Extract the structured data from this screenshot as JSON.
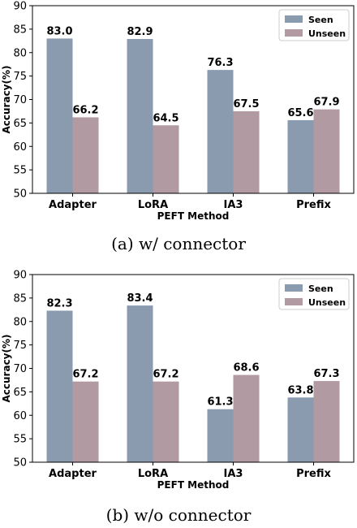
{
  "chart_data": [
    {
      "type": "bar",
      "caption": "(a) w/ connector",
      "xlabel": "PEFT Method",
      "ylabel": "Accuracy(%)",
      "ylim": [
        50,
        90
      ],
      "yticks": [
        "50",
        "55",
        "60",
        "65",
        "70",
        "75",
        "80",
        "85",
        "90"
      ],
      "categories": [
        "Adapter",
        "LoRA",
        "IA3",
        "Prefix"
      ],
      "legend_position": "top-right",
      "series": [
        {
          "name": "Seen",
          "color": "#8a9bb0",
          "values": [
            83.0,
            82.9,
            76.3,
            65.6
          ],
          "labels": [
            "83.0",
            "82.9",
            "76.3",
            "65.6"
          ]
        },
        {
          "name": "Unseen",
          "color": "#b29aa3",
          "values": [
            66.2,
            64.5,
            67.5,
            67.9
          ],
          "labels": [
            "66.2",
            "64.5",
            "67.5",
            "67.9"
          ]
        }
      ]
    },
    {
      "type": "bar",
      "caption": "(b) w/o connector",
      "xlabel": "PEFT Method",
      "ylabel": "Accuracy(%)",
      "ylim": [
        50,
        90
      ],
      "yticks": [
        "50",
        "55",
        "60",
        "65",
        "70",
        "75",
        "80",
        "85",
        "90"
      ],
      "categories": [
        "Adapter",
        "LoRA",
        "IA3",
        "Prefix"
      ],
      "legend_position": "top-right",
      "series": [
        {
          "name": "Seen",
          "color": "#8a9bb0",
          "values": [
            82.3,
            83.4,
            61.3,
            63.8
          ],
          "labels": [
            "82.3",
            "83.4",
            "61.3",
            "63.8"
          ]
        },
        {
          "name": "Unseen",
          "color": "#b29aa3",
          "values": [
            67.2,
            67.2,
            68.6,
            67.3
          ],
          "labels": [
            "67.2",
            "67.2",
            "68.6",
            "67.3"
          ]
        }
      ]
    }
  ]
}
